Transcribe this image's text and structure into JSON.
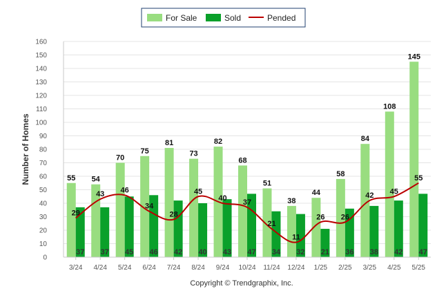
{
  "chart_data": {
    "type": "bar",
    "categories": [
      "3/24",
      "4/24",
      "5/24",
      "6/24",
      "7/24",
      "8/24",
      "9/24",
      "10/24",
      "11/24",
      "12/24",
      "1/25",
      "2/25",
      "3/25",
      "4/25",
      "5/25"
    ],
    "series": [
      {
        "name": "For Sale",
        "kind": "bar",
        "color": "#99dd80",
        "values": [
          55,
          54,
          70,
          75,
          81,
          73,
          82,
          68,
          51,
          38,
          44,
          58,
          84,
          108,
          145
        ]
      },
      {
        "name": "Sold",
        "kind": "bar",
        "color": "#0aa02a",
        "values": [
          37,
          37,
          45,
          46,
          42,
          40,
          43,
          47,
          34,
          32,
          21,
          36,
          38,
          42,
          47
        ]
      },
      {
        "name": "Pended",
        "kind": "line",
        "color": "#bb0000",
        "values": [
          29,
          43,
          46,
          34,
          28,
          45,
          40,
          37,
          21,
          11,
          26,
          26,
          42,
          45,
          55
        ]
      }
    ],
    "ylabel": "Number of Homes",
    "xlabel": "",
    "ylim": [
      0,
      160
    ],
    "yticks": [
      0,
      10,
      20,
      30,
      40,
      50,
      60,
      70,
      80,
      90,
      100,
      110,
      120,
      130,
      140,
      150,
      160
    ],
    "grid": true,
    "legend": "top-center"
  },
  "footer": {
    "copyright": "Copyright © Trendgraphix, Inc."
  }
}
